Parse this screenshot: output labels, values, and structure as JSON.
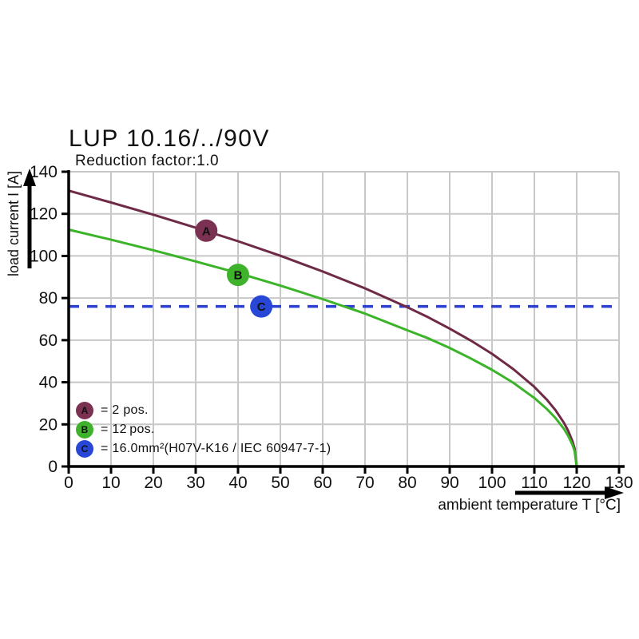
{
  "chart_data": {
    "type": "line",
    "title": "LUP 10.16/../90V",
    "subtitle": "Reduction factor:1.0",
    "xlabel": "ambient temperature T [°C]",
    "ylabel": "load current I [A]",
    "xlim": [
      0,
      130
    ],
    "ylim": [
      0,
      140
    ],
    "x_ticks": [
      0,
      10,
      20,
      30,
      40,
      50,
      60,
      70,
      80,
      90,
      100,
      110,
      120,
      130
    ],
    "y_ticks": [
      0,
      20,
      40,
      60,
      80,
      100,
      120,
      140
    ],
    "grid": true,
    "grid_color": "#c8c8c8",
    "axis_color": "#000000",
    "legend_position": "inside-bottom-left",
    "series": [
      {
        "id": "A",
        "name": "2 pos.",
        "color": "#6E2A46",
        "marker_color": "#7A3152",
        "marker": {
          "x": 32.5,
          "y": 112
        },
        "x": [
          0,
          10,
          20,
          30,
          40,
          50,
          60,
          70,
          80,
          85,
          90,
          95,
          100,
          105,
          110,
          113,
          115,
          117,
          118,
          119,
          119.5,
          120
        ],
        "y": [
          131,
          125.4,
          119.6,
          113.4,
          107.0,
          100.1,
          92.6,
          84.6,
          75.6,
          70.8,
          65.5,
          59.8,
          53.5,
          46.3,
          37.8,
          31.6,
          26.7,
          20.7,
          16.9,
          12.0,
          8.5,
          0
        ]
      },
      {
        "id": "B",
        "name": "12 pos.",
        "color": "#3CB42A",
        "marker_color": "#3FB22B",
        "marker": {
          "x": 40,
          "y": 91
        },
        "x": [
          0,
          10,
          20,
          30,
          40,
          50,
          60,
          70,
          80,
          85,
          90,
          95,
          100,
          105,
          110,
          113,
          115,
          117,
          118,
          119,
          119.5,
          120
        ],
        "y": [
          112.5,
          107.7,
          102.7,
          97.4,
          91.9,
          85.9,
          79.5,
          72.6,
          64.7,
          60.8,
          56.3,
          51.3,
          45.9,
          39.8,
          32.5,
          27.2,
          23.0,
          17.8,
          14.5,
          10.3,
          7.3,
          0
        ]
      },
      {
        "id": "C",
        "name": "16.0mm²(H07V-K16 / IEC 60947-7-1)",
        "color": "#2B3FD0",
        "marker_color": "#2847D6",
        "style": "dashed",
        "marker": {
          "x": 45.5,
          "y": 76
        },
        "y_const": 76
      }
    ],
    "legend": [
      {
        "letter": "A",
        "label": "= 2 pos.",
        "color": "#7A3152"
      },
      {
        "letter": "B",
        "label": "= 12 pos.",
        "color": "#3FB22B"
      },
      {
        "letter": "C",
        "label": "= 16.0mm²(H07V-K16 / IEC 60947-7-1)",
        "color": "#2847D6"
      }
    ]
  }
}
